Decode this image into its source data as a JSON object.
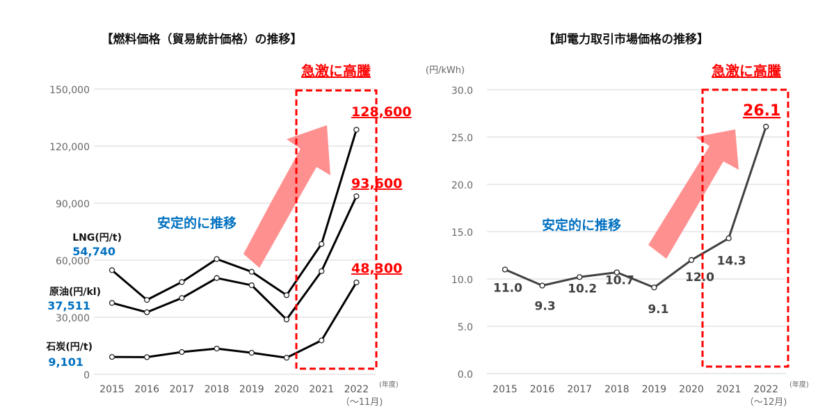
{
  "chart_data": [
    {
      "type": "line",
      "title": "【燃料価格（貿易統計価格）の推移】",
      "categories": [
        "2015",
        "2016",
        "2017",
        "2018",
        "2019",
        "2020",
        "2021",
        "2022"
      ],
      "xlabel": "(年度)",
      "x_note": "（～11月)",
      "ylim": [
        0,
        150000
      ],
      "yticks": [
        "0",
        "30,000",
        "60,000",
        "90,000",
        "120,000",
        "150,000"
      ],
      "ytick_values": [
        0,
        30000,
        60000,
        90000,
        120000,
        150000
      ],
      "grid": true,
      "series": [
        {
          "name": "LNG(円/t)",
          "start_label": "54,740",
          "end_label": "128,600",
          "values": [
            54740,
            39100,
            48500,
            60600,
            53900,
            41600,
            68500,
            128600
          ]
        },
        {
          "name": "原油(円/kl)",
          "start_label": "37,511",
          "end_label": "93,600",
          "values": [
            37511,
            32600,
            40100,
            50600,
            46800,
            28800,
            54200,
            93600
          ]
        },
        {
          "name": "石炭(円/t)",
          "start_label": "9,101",
          "end_label": "48,300",
          "values": [
            9101,
            9000,
            11700,
            13500,
            11300,
            8700,
            17800,
            48300
          ]
        }
      ],
      "annotations": {
        "stable": "安定的に推移",
        "surge": "急激に高騰"
      }
    },
    {
      "type": "line",
      "title": "【卸電力取引市場価格の推移】",
      "categories": [
        "2015",
        "2016",
        "2017",
        "2018",
        "2019",
        "2020",
        "2021",
        "2022"
      ],
      "xlabel": "(年度)",
      "x_note": "（～12月)",
      "ylabel": "(円/kWh)",
      "ylim": [
        0,
        30
      ],
      "yticks": [
        "0.0",
        "5.0",
        "10.0",
        "15.0",
        "20.0",
        "25.0",
        "30.0"
      ],
      "ytick_values": [
        0,
        5,
        10,
        15,
        20,
        25,
        30
      ],
      "grid": true,
      "series": [
        {
          "name": "卸電力取引市場価格",
          "values": [
            11.0,
            9.3,
            10.2,
            10.7,
            9.1,
            12.0,
            14.3,
            26.1
          ],
          "labels": [
            "11.0",
            "9.3",
            "10.2",
            "10.7",
            "9.1",
            "12.0",
            "14.3",
            "26.1"
          ]
        }
      ],
      "annotations": {
        "stable": "安定的に推移",
        "surge": "急激に高騰"
      }
    }
  ],
  "colors": {
    "accent_red": "#ff0000",
    "arrow": "#ff9090",
    "blue": "#0070c0"
  }
}
